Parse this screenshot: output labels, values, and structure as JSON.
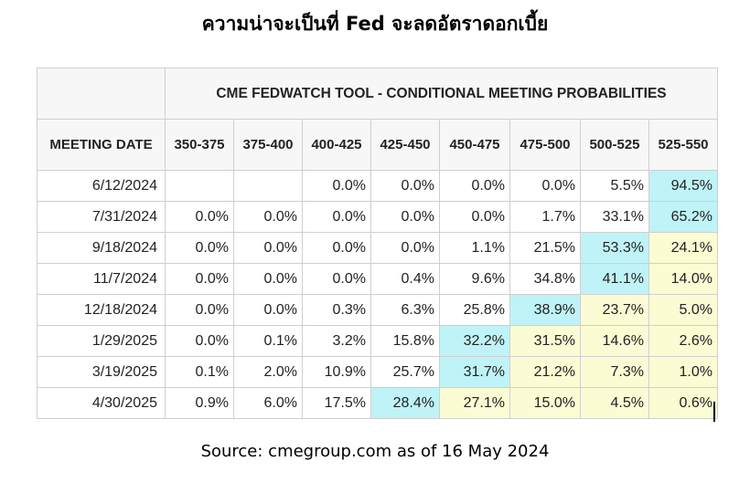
{
  "title": "ความน่าจะเป็นที่ Fed จะลดอัตราดอกเบี้ย",
  "table": {
    "tool_title": "CME FEDWATCH TOOL - CONDITIONAL MEETING PROBABILITIES",
    "date_header": "MEETING DATE",
    "columns": [
      "350-375",
      "375-400",
      "400-425",
      "425-450",
      "450-475",
      "475-500",
      "500-525",
      "525-550"
    ],
    "rows": [
      {
        "date": "6/12/2024",
        "values": [
          "",
          "",
          "0.0%",
          "0.0%",
          "0.0%",
          "0.0%",
          "5.5%",
          "94.5%"
        ]
      },
      {
        "date": "7/31/2024",
        "values": [
          "0.0%",
          "0.0%",
          "0.0%",
          "0.0%",
          "0.0%",
          "1.7%",
          "33.1%",
          "65.2%"
        ]
      },
      {
        "date": "9/18/2024",
        "values": [
          "0.0%",
          "0.0%",
          "0.0%",
          "0.0%",
          "1.1%",
          "21.5%",
          "53.3%",
          "24.1%"
        ]
      },
      {
        "date": "11/7/2024",
        "values": [
          "0.0%",
          "0.0%",
          "0.0%",
          "0.4%",
          "9.6%",
          "34.8%",
          "41.1%",
          "14.0%"
        ]
      },
      {
        "date": "12/18/2024",
        "values": [
          "0.0%",
          "0.0%",
          "0.3%",
          "6.3%",
          "25.8%",
          "38.9%",
          "23.7%",
          "5.0%"
        ]
      },
      {
        "date": "1/29/2025",
        "values": [
          "0.0%",
          "0.1%",
          "3.2%",
          "15.8%",
          "32.2%",
          "31.5%",
          "14.6%",
          "2.6%"
        ]
      },
      {
        "date": "3/19/2025",
        "values": [
          "0.1%",
          "2.0%",
          "10.9%",
          "25.7%",
          "31.7%",
          "21.2%",
          "7.3%",
          "1.0%"
        ]
      },
      {
        "date": "4/30/2025",
        "values": [
          "0.9%",
          "6.0%",
          "17.5%",
          "28.4%",
          "27.1%",
          "15.0%",
          "4.5%",
          "0.6%"
        ]
      }
    ],
    "highlight_max": [
      7,
      7,
      6,
      6,
      5,
      4,
      4,
      3
    ],
    "highlight_yellow": [
      [],
      [],
      [
        7
      ],
      [
        7
      ],
      [
        6,
        7
      ],
      [
        5,
        6,
        7
      ],
      [
        5,
        6,
        7
      ],
      [
        4,
        5,
        6,
        7
      ]
    ],
    "colors": {
      "max_cell": "#bff3f7",
      "rate_below_current": "#fbfbd4"
    }
  },
  "source": "Source: cmegroup.com as of 16 May 2024"
}
